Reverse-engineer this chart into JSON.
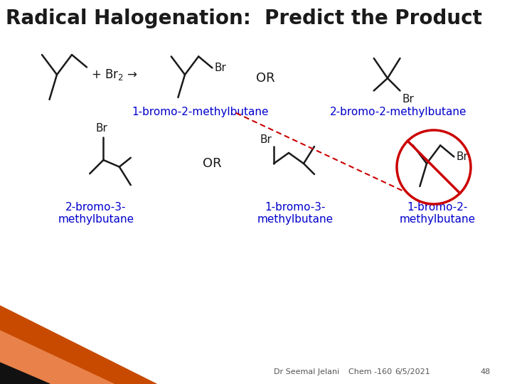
{
  "title": "Radical Halogenation:  Predict the Product",
  "title_fontsize": 20,
  "title_color": "#1a1a1a",
  "title_weight": "bold",
  "bg_color": "#ffffff",
  "label1": "1-bromo-2-methylbutane",
  "label2": "2-bromo-2-methylbutane",
  "label3": "2-bromo-3-\nmethylbutane",
  "label4": "1-bromo-3-\nmethylbutane",
  "label5": "1-bromo-2-\nmethylbutane",
  "label_color": "#0000cc",
  "label_fontsize": 11,
  "br_color": "#1a1a1a",
  "footer_text1": "Dr Seemal Jelani",
  "footer_text2": "Chem -160",
  "footer_text3": "6/5/2021",
  "footer_text4": "48",
  "footer_fontsize": 8,
  "footer_color": "#555555",
  "cross_color": "#cc0000",
  "lw": 1.8
}
